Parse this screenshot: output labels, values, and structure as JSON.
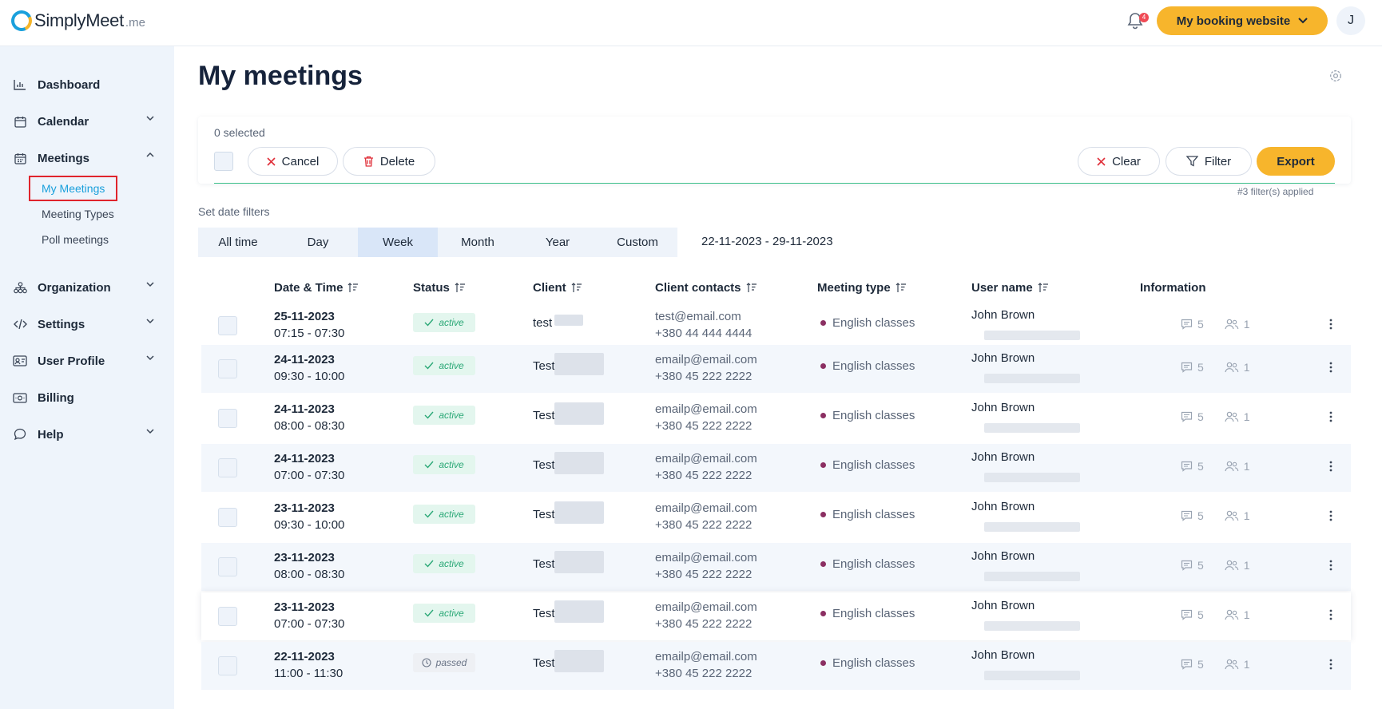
{
  "header": {
    "brand_main": "SimplyMeet",
    "brand_suffix": ".me",
    "notification_count": "4",
    "booking_button": "My booking website",
    "avatar_initial": "J"
  },
  "sidebar": {
    "items": [
      {
        "label": "Dashboard",
        "icon": "chart-icon"
      },
      {
        "label": "Calendar",
        "icon": "calendar-icon"
      },
      {
        "label": "Meetings",
        "icon": "meetings-icon"
      },
      {
        "label": "Organization",
        "icon": "org-icon"
      },
      {
        "label": "Settings",
        "icon": "code-icon"
      },
      {
        "label": "User Profile",
        "icon": "id-card-icon"
      },
      {
        "label": "Billing",
        "icon": "money-icon"
      },
      {
        "label": "Help",
        "icon": "chat-icon"
      }
    ],
    "meetings_sub": [
      "My Meetings",
      "Meeting Types",
      "Poll meetings"
    ]
  },
  "page": {
    "title": "My meetings"
  },
  "toolbar": {
    "selected_text": "0 selected",
    "cancel": "Cancel",
    "delete": "Delete",
    "clear": "Clear",
    "filter": "Filter",
    "export": "Export",
    "filters_applied": "#3 filter(s) applied"
  },
  "date_filters": {
    "label": "Set date filters",
    "options": [
      "All time",
      "Day",
      "Week",
      "Month",
      "Year",
      "Custom"
    ],
    "selected": "Week",
    "range": "22-11-2023 - 29-11-2023"
  },
  "table": {
    "headers": [
      "Date & Time",
      "Status",
      "Client",
      "Client contacts",
      "Meeting type",
      "User name",
      "Information"
    ],
    "rows": [
      {
        "date": "25-11-2023",
        "time": "07:15 - 07:30",
        "status": "active",
        "client": "test",
        "email": "test@email.com",
        "phone": "+380 44 444 4444",
        "type": "English classes",
        "user": "John Brown",
        "comments": "5",
        "people": "1"
      },
      {
        "date": "24-11-2023",
        "time": "09:30 - 10:00",
        "status": "active",
        "client": "Test",
        "email": "emailp@email.com",
        "phone": "+380 45 222 2222",
        "type": "English classes",
        "user": "John Brown",
        "comments": "5",
        "people": "1"
      },
      {
        "date": "24-11-2023",
        "time": "08:00 - 08:30",
        "status": "active",
        "client": "Test",
        "email": "emailp@email.com",
        "phone": "+380 45 222 2222",
        "type": "English classes",
        "user": "John Brown",
        "comments": "5",
        "people": "1"
      },
      {
        "date": "24-11-2023",
        "time": "07:00 - 07:30",
        "status": "active",
        "client": "Test",
        "email": "emailp@email.com",
        "phone": "+380 45 222 2222",
        "type": "English classes",
        "user": "John Brown",
        "comments": "5",
        "people": "1"
      },
      {
        "date": "23-11-2023",
        "time": "09:30 - 10:00",
        "status": "active",
        "client": "Test",
        "email": "emailp@email.com",
        "phone": "+380 45 222 2222",
        "type": "English classes",
        "user": "John Brown",
        "comments": "5",
        "people": "1"
      },
      {
        "date": "23-11-2023",
        "time": "08:00 - 08:30",
        "status": "active",
        "client": "Test",
        "email": "emailp@email.com",
        "phone": "+380 45 222 2222",
        "type": "English classes",
        "user": "John Brown",
        "comments": "5",
        "people": "1"
      },
      {
        "date": "23-11-2023",
        "time": "07:00 - 07:30",
        "status": "active",
        "client": "Test",
        "email": "emailp@email.com",
        "phone": "+380 45 222 2222",
        "type": "English classes",
        "user": "John Brown",
        "comments": "5",
        "people": "1"
      },
      {
        "date": "22-11-2023",
        "time": "11:00 - 11:30",
        "status": "passed",
        "client": "Test",
        "email": "emailp@email.com",
        "phone": "+380 45 222 2222",
        "type": "English classes",
        "user": "John Brown",
        "comments": "5",
        "people": "1"
      }
    ]
  },
  "colors": {
    "accent": "#f7b52c",
    "brand_blue": "#1aa0dc",
    "active_green": "#2aa876",
    "meeting_dot": "#8b2f62"
  }
}
